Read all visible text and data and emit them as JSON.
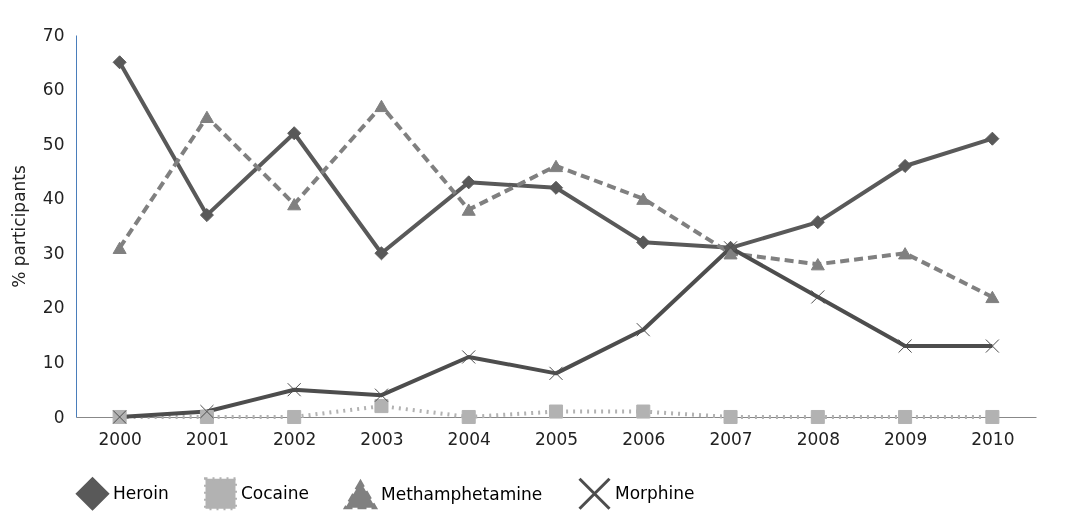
{
  "chart_data": {
    "type": "line",
    "ylabel": "% participants",
    "categories": [
      "2000",
      "2001",
      "2002",
      "2003",
      "2004",
      "2005",
      "2006",
      "2007",
      "2008",
      "2009",
      "2010"
    ],
    "ylim": [
      0,
      70
    ],
    "yticks": [
      0,
      10,
      20,
      30,
      40,
      50,
      60,
      70
    ],
    "grid": false,
    "legend": "bottom",
    "series": [
      {
        "name": "Heroin",
        "color": "#595959",
        "marker": "diamond",
        "line_style": "solid",
        "values": [
          65,
          37,
          52,
          30,
          43,
          42,
          32,
          31,
          35.7,
          46,
          51
        ]
      },
      {
        "name": "Cocaine",
        "color": "#b2b2b2",
        "marker": "square",
        "line_style": "dotted",
        "values": [
          0,
          0,
          0,
          2,
          0,
          1,
          1,
          0,
          0,
          0,
          0
        ]
      },
      {
        "name": "Methamphetamine",
        "color": "#808080",
        "marker": "triangle",
        "line_style": "dashed",
        "values": [
          31,
          55,
          39,
          57,
          38,
          46,
          40,
          30,
          28,
          30,
          22
        ]
      },
      {
        "name": "Morphine",
        "color": "#4d4d4d",
        "marker": "cross",
        "line_style": "solid",
        "values": [
          0,
          1,
          5,
          4,
          11,
          8,
          16,
          31,
          22,
          13,
          13
        ]
      }
    ]
  }
}
